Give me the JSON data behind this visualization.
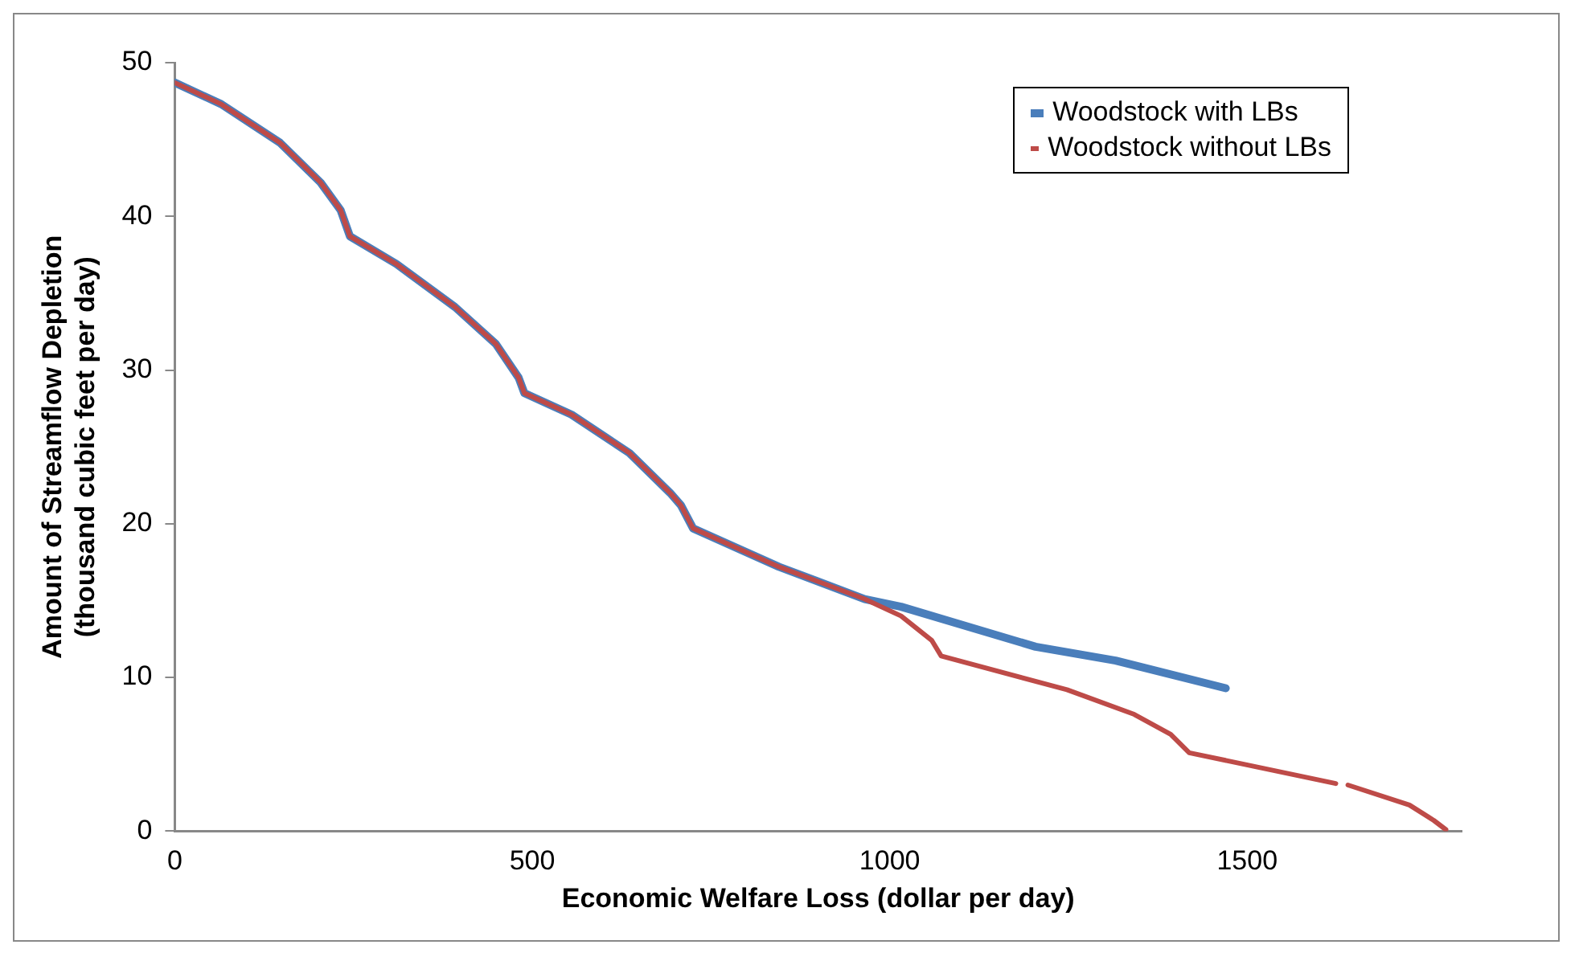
{
  "chart_data": {
    "type": "line",
    "xlabel": "Economic Welfare Loss (dollar per day)",
    "ylabel": "Amount of Streamflow Depletion (thousand cubic feet per day)",
    "xlim": [
      0,
      1800
    ],
    "xticks": [
      0,
      500,
      1000,
      1500
    ],
    "ylim": [
      0,
      50
    ],
    "yticks": [
      0,
      10,
      20,
      30,
      40,
      50
    ],
    "grid": false,
    "legend": "top right",
    "marker": "none",
    "line_style": "solid",
    "series": [
      {
        "name": "Woodstock with LBs",
        "color": "#4a7ebb",
        "x": [
          0,
          65,
          147,
          204,
          232,
          245,
          310,
          392,
          449,
          481,
          489,
          555,
          636,
          693,
          708,
          725,
          845,
          965,
          1016,
          1204,
          1316,
          1470
        ],
        "values": [
          48.7,
          47.3,
          44.8,
          42.2,
          40.4,
          38.7,
          36.9,
          34.1,
          31.7,
          29.5,
          28.5,
          27.1,
          24.6,
          22.0,
          21.2,
          19.7,
          17.2,
          15.1,
          14.6,
          12.0,
          11.1,
          9.3
        ]
      },
      {
        "name": "Woodstock without LBs",
        "color": "#be4b48",
        "x": [
          0,
          65,
          147,
          204,
          232,
          245,
          310,
          392,
          449,
          481,
          489,
          555,
          636,
          693,
          708,
          725,
          845,
          965,
          1016,
          1059,
          1072,
          1248,
          1342,
          1393,
          1419,
          1624,
          1632,
          1641,
          1727,
          1761,
          1778
        ],
        "values": [
          48.7,
          47.3,
          44.8,
          42.2,
          40.4,
          38.7,
          36.9,
          34.1,
          31.7,
          29.5,
          28.5,
          27.1,
          24.6,
          22.0,
          21.2,
          19.7,
          17.2,
          15.1,
          14.0,
          12.4,
          11.4,
          9.2,
          7.6,
          6.3,
          5.1,
          3.1,
          null,
          3.0,
          1.7,
          0.7,
          0.1
        ]
      }
    ]
  }
}
